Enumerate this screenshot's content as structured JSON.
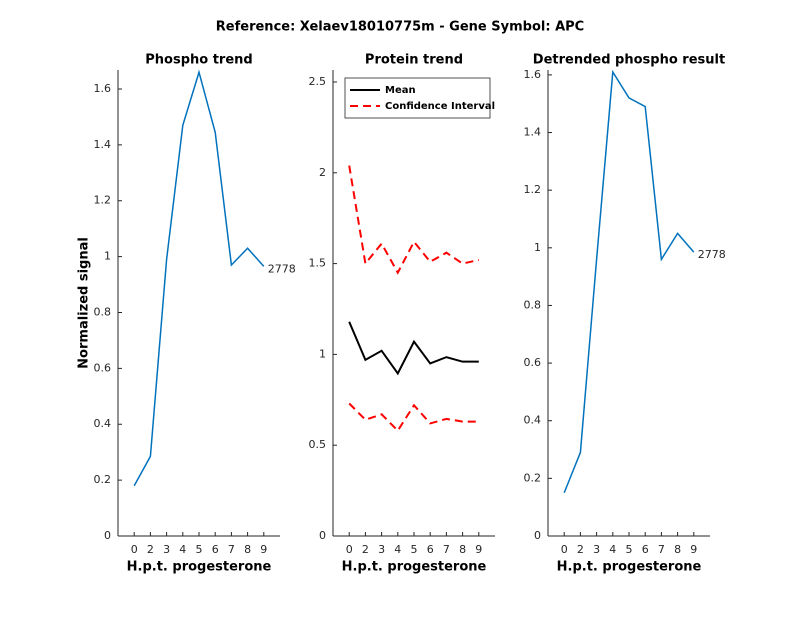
{
  "title": "Reference:  Xelaev18010775m - Gene Symbol:  APC",
  "chart_data": [
    {
      "type": "line",
      "title": "Phospho trend",
      "xlabel": "H.p.t. progesterone",
      "ylabel": "Normalized signal",
      "categories": [
        "0",
        "2",
        "3",
        "4",
        "5",
        "6",
        "7",
        "8",
        "9"
      ],
      "values": [
        0.18,
        0.285,
        0.99,
        1.47,
        1.66,
        1.445,
        0.97,
        1.03,
        0.965
      ],
      "color": "#0072bd",
      "annotation": "2778",
      "ylim": [
        0,
        1.668
      ],
      "yticks": [
        0,
        0.2,
        0.4,
        0.6,
        0.8,
        1,
        1.2,
        1.4,
        1.6
      ]
    },
    {
      "type": "line",
      "title": "Protein trend",
      "xlabel": "H.p.t. progesterone",
      "categories": [
        "0",
        "2",
        "3",
        "4",
        "5",
        "6",
        "7",
        "8",
        "9"
      ],
      "series": [
        {
          "name": "Mean",
          "color": "#000000",
          "linestyle": "solid",
          "values": [
            1.18,
            0.97,
            1.02,
            0.895,
            1.07,
            0.95,
            0.985,
            0.96,
            0.96
          ]
        },
        {
          "name": "Confidence Interval",
          "color": "#ff0000",
          "linestyle": "dashed",
          "values": [
            2.04,
            1.5,
            1.61,
            1.45,
            1.62,
            1.51,
            1.56,
            1.5,
            1.52
          ]
        },
        {
          "color": "#ff0000",
          "linestyle": "dashed",
          "values": [
            0.73,
            0.64,
            0.67,
            0.58,
            0.72,
            0.62,
            0.645,
            0.63,
            0.63
          ]
        }
      ],
      "legend": "upper left",
      "ylim": [
        0,
        2.566
      ],
      "yticks": [
        0,
        0.5,
        1,
        1.5,
        2,
        2.5
      ]
    },
    {
      "type": "line",
      "title": "Detrended phospho result",
      "xlabel": "H.p.t. progesterone",
      "categories": [
        "0",
        "2",
        "3",
        "4",
        "5",
        "6",
        "7",
        "8",
        "9"
      ],
      "values": [
        0.15,
        0.29,
        0.96,
        1.61,
        1.52,
        1.49,
        0.96,
        1.05,
        0.985
      ],
      "color": "#0072bd",
      "annotation": "2778",
      "ylim": [
        0,
        1.617
      ],
      "yticks": [
        0,
        0.2,
        0.4,
        0.6,
        0.8,
        1,
        1.2,
        1.4,
        1.6
      ]
    }
  ]
}
